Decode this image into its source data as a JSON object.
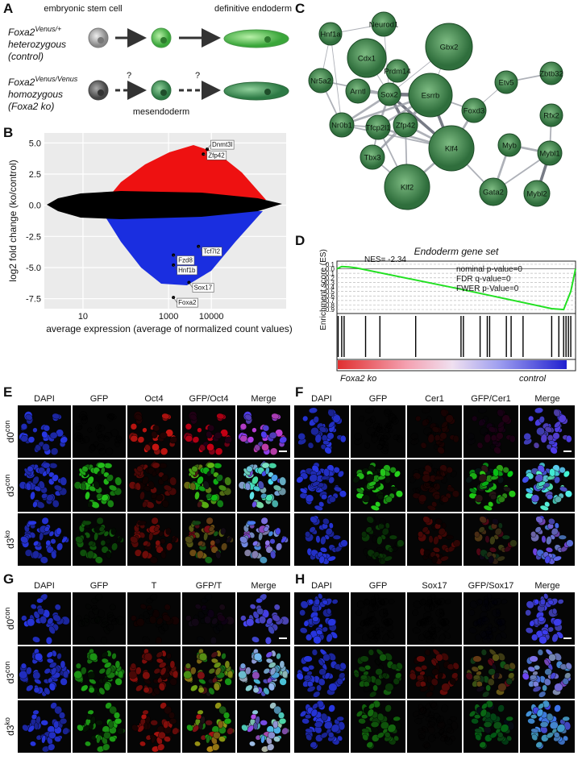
{
  "panel_labels": [
    "A",
    "B",
    "C",
    "D",
    "E",
    "F",
    "G",
    "H"
  ],
  "panel_a": {
    "top_labels": [
      "embryonic stem cell",
      "definitive endoderm"
    ],
    "rows": [
      {
        "gene": "Foxa2",
        "allele": "Venus/+",
        "lines": [
          "heterozygous",
          "(control)"
        ]
      },
      {
        "gene": "Foxa2",
        "allele": "Venus/Venus",
        "lines": [
          "homozygous",
          "(Foxa2 ko)"
        ]
      }
    ],
    "unknown_step": [
      "?",
      "?"
    ],
    "intermediate": "mesendoderm"
  },
  "chart_data": [
    {
      "type": "scatter",
      "x_label": "average expression (average of normalized count values)",
      "y_label": "log2 fold change (ko/control)",
      "log_x": true,
      "xlim": [
        1.25,
        560000
      ],
      "xticks": [
        10,
        1000,
        10000
      ],
      "ylim": [
        -8.3,
        5.8
      ],
      "yticks": [
        {
          "value": 5,
          "label": "5.0"
        },
        2.5,
        {
          "value": 0,
          "label": "0.0"
        },
        -2.5,
        {
          "value": -5,
          "label": "-5.0"
        },
        -7.5
      ],
      "grid": true,
      "labels": [
        "Dnmt3l",
        "Zfp42",
        "Tcf7l2",
        "Fzd8",
        "Hnf1b",
        "Sox17",
        "Foxa2"
      ],
      "x": [
        8000,
        6500,
        5000,
        1300,
        1300,
        3000,
        1300
      ],
      "values": [
        4.5,
        4.1,
        -3.3,
        -4.0,
        -4.8,
        -6.2,
        -7.4
      ],
      "colors": {
        "up": "#ee1111",
        "down": "#1a2ee0",
        "unchanged": "#000000"
      }
    },
    {
      "type": "line",
      "title": "Endoderm gene set",
      "y_label": "Enrichment score (ES)",
      "annotation": "NES= -2.34",
      "stats": [
        "nominal p-value=0",
        "FDR q-value=0",
        "FWER p-Value=0"
      ],
      "x": [
        0,
        0.02,
        0.05,
        0.08,
        0.5,
        0.9,
        0.95,
        0.98,
        1
      ],
      "values": [
        0,
        0.05,
        0.04,
        0.02,
        -0.43,
        -0.88,
        -0.9,
        -0.5,
        0
      ],
      "ylim": [
        -0.97,
        0.17
      ],
      "yticks": [
        0.1,
        {
          "value": 0,
          "label": "0.0"
        },
        -0.1,
        -0.2,
        -0.3,
        -0.4,
        -0.5,
        -0.6,
        -0.7,
        -0.8,
        -0.9
      ],
      "grid": true,
      "color": "#22e022",
      "hits": [
        0.005,
        0.02,
        0.03,
        0.12,
        0.18,
        0.33,
        0.52,
        0.53,
        0.6,
        0.63,
        0.64,
        0.71,
        0.73,
        0.78,
        0.9,
        0.93,
        0.95,
        0.96,
        0.97,
        0.98
      ],
      "x_labels": [
        "Foxa2 ko",
        "control"
      ]
    }
  ],
  "network": {
    "nodes": [
      "Hnf1a",
      "Neurod1",
      "Cdx1",
      "Gbx2",
      "Prdm14",
      "Zbtb32",
      "Nr5a2",
      "Arntl",
      "Sox2",
      "Esrrb",
      "Etv5",
      "Rfx2",
      "Nr0b1",
      "Tfcp2l1",
      "Zfp42",
      "Foxd3",
      "Myb",
      "Mybl1",
      "Tbx3",
      "Klf4",
      "Klf2",
      "Gata2",
      "Mybl2"
    ]
  },
  "microscopy": [
    {
      "columns": [
        "DAPI",
        "GFP",
        "Oct4",
        "GFP/Oct4",
        "Merge"
      ],
      "rows": [
        {
          "day": "d0",
          "genotype": "con"
        },
        {
          "day": "d3",
          "genotype": "con"
        },
        {
          "day": "d3",
          "genotype": "ko"
        }
      ]
    },
    {
      "columns": [
        "DAPI",
        "GFP",
        "Cer1",
        "GFP/Cer1",
        "Merge"
      ]
    },
    {
      "columns": [
        "DAPI",
        "GFP",
        "T",
        "GFP/T",
        "Merge"
      ],
      "rows": [
        {
          "day": "d0",
          "genotype": "con"
        },
        {
          "day": "d3",
          "genotype": "con"
        },
        {
          "day": "d3",
          "genotype": "ko"
        }
      ]
    },
    {
      "columns": [
        "DAPI",
        "GFP",
        "Sox17",
        "GFP/Sox17",
        "Merge"
      ]
    }
  ]
}
